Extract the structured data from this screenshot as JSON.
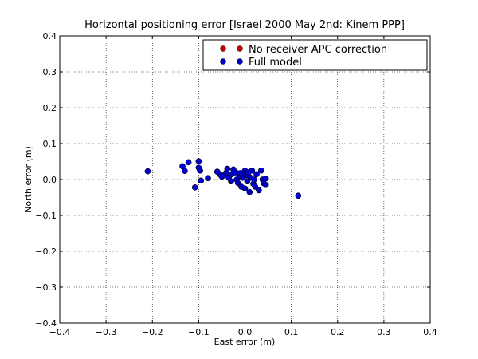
{
  "chart_data": {
    "type": "scatter",
    "title": "Horizontal positioning error [Israel 2000 May 2nd: Kinem PPP]",
    "xlabel": "East error (m)",
    "ylabel": "North error (m)",
    "xlim": [
      -0.4,
      0.4
    ],
    "ylim": [
      -0.4,
      0.4
    ],
    "xticks": [
      "−0.4",
      "−0.3",
      "−0.2",
      "−0.1",
      "0.0",
      "0.1",
      "0.2",
      "0.3",
      "0.4"
    ],
    "yticks": [
      "−0.4",
      "−0.3",
      "−0.2",
      "−0.1",
      "0.0",
      "0.1",
      "0.2",
      "0.3",
      "0.4"
    ],
    "grid": true,
    "legend_position": "top-right",
    "series": [
      {
        "name": "No receiver APC correction",
        "color": "#cc0000",
        "points": [
          [
            -0.21,
            0.023
          ],
          [
            -0.135,
            0.037
          ],
          [
            -0.13,
            0.024
          ],
          [
            -0.122,
            0.048
          ],
          [
            -0.1,
            0.051
          ],
          [
            -0.1,
            0.033
          ],
          [
            -0.097,
            0.025
          ],
          [
            -0.108,
            -0.022
          ],
          [
            -0.095,
            -0.003
          ],
          [
            -0.08,
            0.004
          ],
          [
            -0.06,
            0.022
          ],
          [
            -0.055,
            0.015
          ],
          [
            -0.05,
            0.008
          ],
          [
            -0.045,
            0.012
          ],
          [
            -0.04,
            0.02
          ],
          [
            -0.038,
            0.03
          ],
          [
            -0.035,
            0.005
          ],
          [
            -0.03,
            -0.005
          ],
          [
            -0.028,
            0.015
          ],
          [
            -0.025,
            0.028
          ],
          [
            -0.02,
            0.02
          ],
          [
            -0.018,
            0.0
          ],
          [
            -0.015,
            -0.01
          ],
          [
            -0.012,
            0.01
          ],
          [
            -0.01,
            0.018
          ],
          [
            -0.008,
            -0.02
          ],
          [
            -0.005,
            0.005
          ],
          [
            0.0,
            0.025
          ],
          [
            0.0,
            -0.025
          ],
          [
            0.002,
            0.012
          ],
          [
            0.005,
            -0.005
          ],
          [
            0.008,
            0.02
          ],
          [
            0.01,
            -0.035
          ],
          [
            0.012,
            0.005
          ],
          [
            0.015,
            0.025
          ],
          [
            0.018,
            -0.012
          ],
          [
            0.02,
            0.0
          ],
          [
            0.022,
            -0.02
          ],
          [
            0.025,
            0.015
          ],
          [
            0.03,
            -0.03
          ],
          [
            0.035,
            0.025
          ],
          [
            0.038,
            0.0
          ],
          [
            0.04,
            -0.01
          ],
          [
            0.045,
            -0.015
          ],
          [
            0.045,
            0.003
          ],
          [
            0.115,
            -0.045
          ]
        ]
      },
      {
        "name": "Full model",
        "color": "#0000cc",
        "points": [
          [
            -0.21,
            0.023
          ],
          [
            -0.135,
            0.037
          ],
          [
            -0.13,
            0.024
          ],
          [
            -0.122,
            0.048
          ],
          [
            -0.1,
            0.051
          ],
          [
            -0.1,
            0.033
          ],
          [
            -0.097,
            0.025
          ],
          [
            -0.108,
            -0.022
          ],
          [
            -0.095,
            -0.003
          ],
          [
            -0.08,
            0.004
          ],
          [
            -0.06,
            0.022
          ],
          [
            -0.055,
            0.015
          ],
          [
            -0.05,
            0.008
          ],
          [
            -0.045,
            0.012
          ],
          [
            -0.04,
            0.02
          ],
          [
            -0.038,
            0.03
          ],
          [
            -0.035,
            0.005
          ],
          [
            -0.03,
            -0.005
          ],
          [
            -0.028,
            0.015
          ],
          [
            -0.025,
            0.028
          ],
          [
            -0.02,
            0.02
          ],
          [
            -0.018,
            0.0
          ],
          [
            -0.015,
            -0.01
          ],
          [
            -0.012,
            0.01
          ],
          [
            -0.01,
            0.018
          ],
          [
            -0.008,
            -0.02
          ],
          [
            -0.005,
            0.005
          ],
          [
            0.0,
            0.025
          ],
          [
            0.0,
            -0.025
          ],
          [
            0.002,
            0.012
          ],
          [
            0.005,
            -0.005
          ],
          [
            0.008,
            0.02
          ],
          [
            0.01,
            -0.035
          ],
          [
            0.012,
            0.005
          ],
          [
            0.015,
            0.025
          ],
          [
            0.018,
            -0.012
          ],
          [
            0.02,
            0.0
          ],
          [
            0.022,
            -0.02
          ],
          [
            0.025,
            0.015
          ],
          [
            0.03,
            -0.03
          ],
          [
            0.035,
            0.025
          ],
          [
            0.038,
            0.0
          ],
          [
            0.04,
            -0.01
          ],
          [
            0.045,
            -0.015
          ],
          [
            0.045,
            0.003
          ],
          [
            0.115,
            -0.045
          ]
        ]
      }
    ]
  }
}
